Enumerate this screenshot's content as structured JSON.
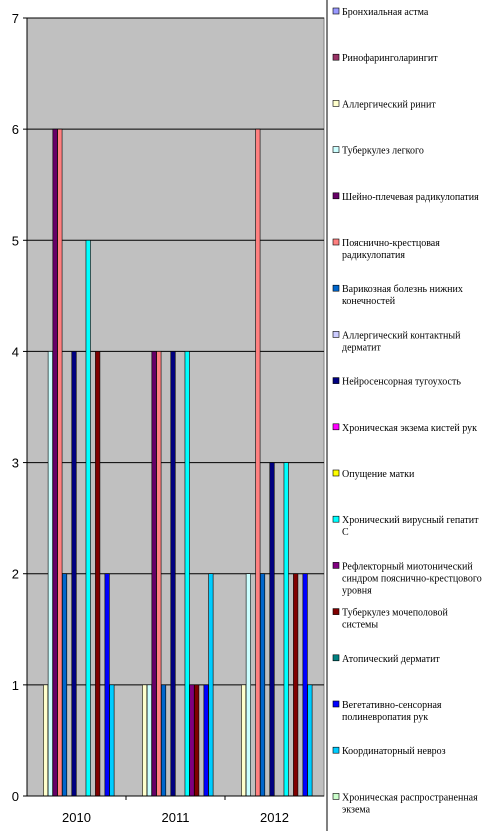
{
  "chart_data": {
    "type": "bar",
    "categories": [
      "2010",
      "2011",
      "2012"
    ],
    "ylim": [
      0,
      7
    ],
    "yticks": [
      0,
      1,
      2,
      3,
      4,
      5,
      6,
      7
    ],
    "grid": true,
    "plot_background": "#c0c0c0",
    "legend_position": "right",
    "series": [
      {
        "name": "Бронхиальная астма",
        "color": "#9999ff",
        "values": [
          null,
          null,
          null
        ]
      },
      {
        "name": "Ринофаринголарингит",
        "color": "#993366",
        "values": [
          null,
          null,
          null
        ]
      },
      {
        "name": "Аллергический ринит",
        "color": "#ffffcc",
        "values": [
          1,
          1,
          1
        ]
      },
      {
        "name": "Туберкулез легкого",
        "color": "#ccffff",
        "values": [
          4,
          1,
          2
        ]
      },
      {
        "name": "Шейно-плечевая радикулопатия",
        "color": "#660066",
        "values": [
          6,
          4,
          null
        ]
      },
      {
        "name": "Пояснично-крестцовая радикулопатия",
        "color": "#ff8080",
        "values": [
          6,
          4,
          6
        ]
      },
      {
        "name": "Варикозная болезнь нижних конечностей",
        "color": "#0066cc",
        "values": [
          2,
          1,
          2
        ]
      },
      {
        "name": "Аллергический контактный дерматит",
        "color": "#ccccff",
        "values": [
          null,
          null,
          null
        ]
      },
      {
        "name": "Нейросенсорная тугоухость",
        "color": "#000080",
        "values": [
          4,
          4,
          3
        ]
      },
      {
        "name": "Хроническая экзема кистей рук",
        "color": "#ff00ff",
        "values": [
          null,
          null,
          null
        ]
      },
      {
        "name": "Опущение матки",
        "color": "#ffff00",
        "values": [
          null,
          null,
          null
        ]
      },
      {
        "name": "Хронический вирусный гепатит С",
        "color": "#00ffff",
        "values": [
          5,
          4,
          3
        ]
      },
      {
        "name": "Рефлекторный миотонический синдром пояснично-крестцового уровня",
        "color": "#800080",
        "values": [
          null,
          1,
          null
        ]
      },
      {
        "name": "Туберкулез мочеполовой системы",
        "color": "#800000",
        "values": [
          4,
          1,
          2
        ]
      },
      {
        "name": "Атопический дерматит",
        "color": "#008080",
        "values": [
          null,
          null,
          null
        ]
      },
      {
        "name": "Вегетативно-сенсорная полиневропатия рук",
        "color": "#0000ff",
        "values": [
          2,
          1,
          2
        ]
      },
      {
        "name": "Координаторный невроз",
        "color": "#00ccff",
        "values": [
          1,
          2,
          1
        ]
      },
      {
        "name": "Хроническая распространенная экзема",
        "color": "#ccffcc",
        "values": [
          null,
          null,
          null
        ]
      }
    ]
  }
}
